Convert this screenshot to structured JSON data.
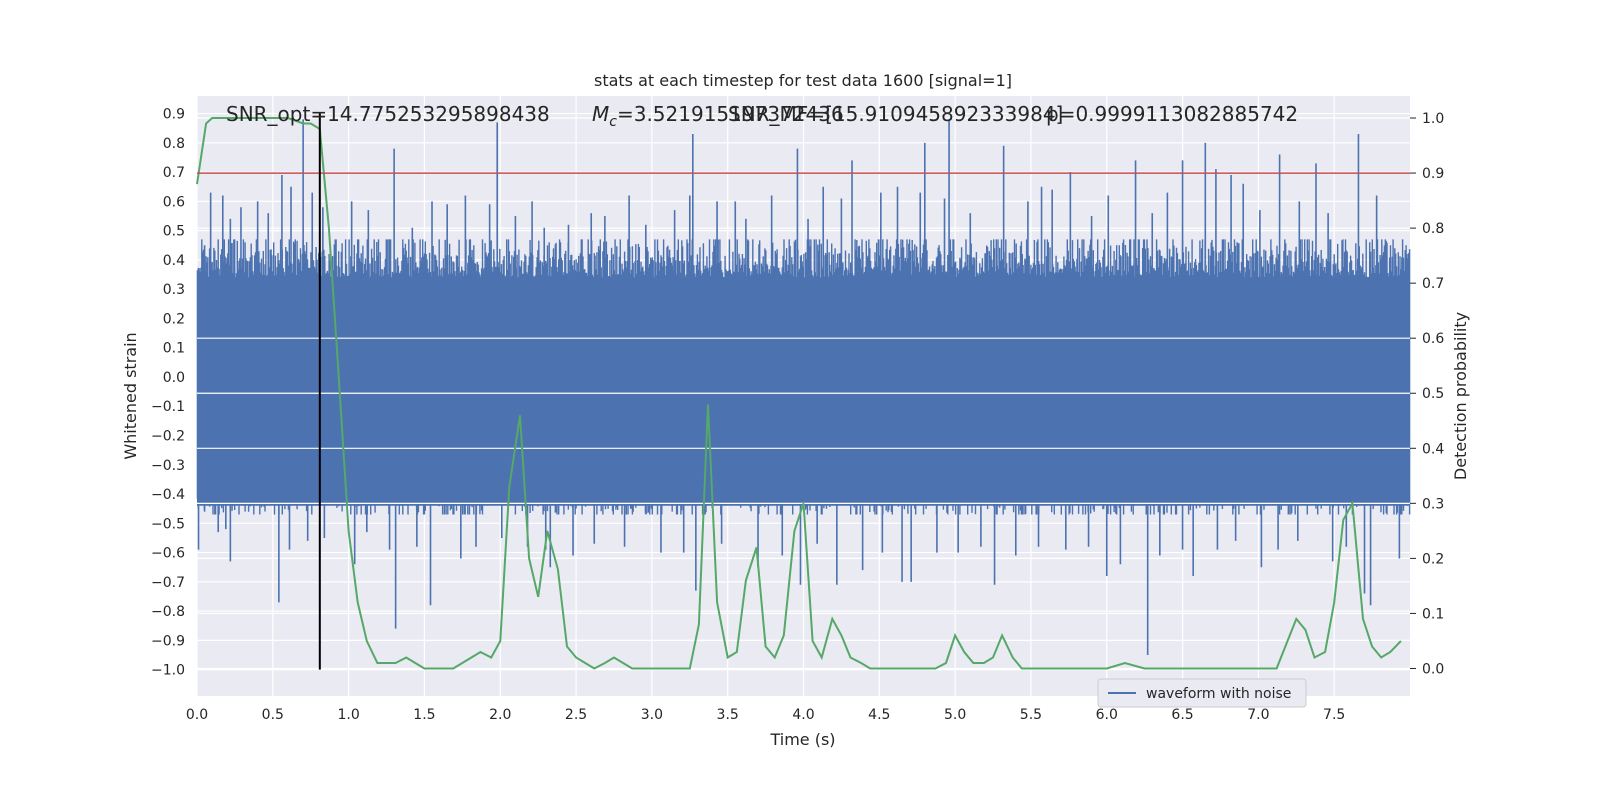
{
  "chart_data": {
    "type": "line",
    "title": "stats at each timestep for test data 1600 [signal=1]",
    "xlabel": "Time (s)",
    "ylabel_left": "Whitened strain",
    "ylabel_right": "Detection probability",
    "xlim": [
      0.0,
      8.0
    ],
    "ylim_left": [
      -1.09,
      0.96
    ],
    "ylim_right": [
      -0.05,
      1.04
    ],
    "x_ticks": [
      "0.0",
      "0.5",
      "1.0",
      "1.5",
      "2.0",
      "2.5",
      "3.0",
      "3.5",
      "4.0",
      "4.5",
      "5.0",
      "5.5",
      "6.0",
      "6.5",
      "7.0",
      "7.5"
    ],
    "y_ticks_left": [
      "0.9",
      "0.8",
      "0.7",
      "0.6",
      "0.5",
      "0.4",
      "0.3",
      "0.2",
      "0.1",
      "0.0",
      "−0.1",
      "−0.2",
      "−0.3",
      "−0.4",
      "−0.5",
      "−0.6",
      "−0.7",
      "−0.8",
      "−0.9",
      "−1.0"
    ],
    "y_ticks_right": [
      "1.0",
      "0.9",
      "0.8",
      "0.7",
      "0.6",
      "0.5",
      "0.4",
      "0.3",
      "0.2",
      "0.1",
      "0.0"
    ],
    "grid": true,
    "legend": {
      "location": "lower right",
      "entries": [
        "waveform with noise"
      ]
    },
    "annotations": {
      "snr_opt": "SNR_opt=14.775253295898438",
      "mc_symbol": "M",
      "mc_sub": "c",
      "mc_value": "=3.521915197372436",
      "snr_mf": "SNR_MF=[15.910945892333984]",
      "p_value": "p=0.9999113082885742"
    },
    "threshold_right": 0.9,
    "merger_time": 0.81,
    "series": [
      {
        "name": "waveform with noise",
        "color": "#4c72b0",
        "style": "dense noise, amplitude mostly within ±0.45 with spikes",
        "spikes": [
          [
            0.05,
            0.45
          ],
          [
            0.09,
            0.63
          ],
          [
            0.17,
            0.62
          ],
          [
            0.22,
            0.54
          ],
          [
            0.29,
            0.58
          ],
          [
            0.4,
            0.6
          ],
          [
            0.47,
            0.56
          ],
          [
            0.56,
            0.69
          ],
          [
            0.62,
            0.65
          ],
          [
            0.7,
            0.88
          ],
          [
            0.76,
            0.63
          ],
          [
            0.83,
            0.58
          ],
          [
            1.02,
            0.6
          ],
          [
            1.13,
            0.57
          ],
          [
            1.3,
            0.78
          ],
          [
            1.42,
            0.51
          ],
          [
            1.55,
            0.6
          ],
          [
            1.65,
            0.59
          ],
          [
            1.77,
            0.62
          ],
          [
            1.93,
            0.59
          ],
          [
            1.98,
            0.87
          ],
          [
            2.1,
            0.55
          ],
          [
            2.21,
            0.6
          ],
          [
            2.29,
            0.51
          ],
          [
            2.45,
            0.52
          ],
          [
            2.6,
            0.56
          ],
          [
            2.69,
            0.55
          ],
          [
            2.85,
            0.62
          ],
          [
            2.96,
            0.52
          ],
          [
            3.15,
            0.57
          ],
          [
            3.25,
            0.62
          ],
          [
            3.27,
            0.83
          ],
          [
            3.43,
            0.6
          ],
          [
            3.55,
            0.6
          ],
          [
            3.62,
            0.54
          ],
          [
            3.79,
            0.62
          ],
          [
            3.96,
            0.78
          ],
          [
            4.03,
            0.54
          ],
          [
            4.13,
            0.65
          ],
          [
            4.25,
            0.61
          ],
          [
            4.32,
            0.74
          ],
          [
            4.51,
            0.63
          ],
          [
            4.62,
            0.65
          ],
          [
            4.77,
            0.63
          ],
          [
            4.8,
            0.8
          ],
          [
            4.93,
            0.61
          ],
          [
            4.96,
            0.88
          ],
          [
            5.1,
            0.56
          ],
          [
            5.32,
            0.79
          ],
          [
            5.48,
            0.6
          ],
          [
            5.57,
            0.65
          ],
          [
            5.64,
            0.64
          ],
          [
            5.76,
            0.7
          ],
          [
            5.9,
            0.55
          ],
          [
            6.01,
            0.62
          ],
          [
            6.19,
            0.74
          ],
          [
            6.3,
            0.56
          ],
          [
            6.4,
            0.63
          ],
          [
            6.5,
            0.74
          ],
          [
            6.65,
            0.8
          ],
          [
            6.72,
            0.71
          ],
          [
            6.82,
            0.69
          ],
          [
            6.9,
            0.66
          ],
          [
            7.01,
            0.57
          ],
          [
            7.14,
            0.76
          ],
          [
            7.27,
            0.6
          ],
          [
            7.38,
            0.73
          ],
          [
            7.46,
            0.56
          ],
          [
            7.66,
            0.83
          ],
          [
            7.78,
            0.62
          ],
          [
            0.01,
            -0.59
          ],
          [
            0.05,
            -0.46
          ],
          [
            0.14,
            -0.53
          ],
          [
            0.19,
            -0.52
          ],
          [
            0.22,
            -0.63
          ],
          [
            0.54,
            -0.77
          ],
          [
            0.61,
            -0.59
          ],
          [
            0.73,
            -0.56
          ],
          [
            0.84,
            -0.55
          ],
          [
            1.04,
            -0.64
          ],
          [
            1.12,
            -0.53
          ],
          [
            1.27,
            -0.59
          ],
          [
            1.31,
            -0.86
          ],
          [
            1.45,
            -0.58
          ],
          [
            1.54,
            -0.78
          ],
          [
            1.74,
            -0.62
          ],
          [
            1.84,
            -0.58
          ],
          [
            2.01,
            -0.55
          ],
          [
            2.18,
            -0.58
          ],
          [
            2.3,
            -0.59
          ],
          [
            2.33,
            -0.65
          ],
          [
            2.48,
            -0.61
          ],
          [
            2.62,
            -0.57
          ],
          [
            2.82,
            -0.58
          ],
          [
            3.06,
            -0.6
          ],
          [
            3.21,
            -0.6
          ],
          [
            3.29,
            -0.73
          ],
          [
            3.46,
            -0.57
          ],
          [
            3.7,
            -0.65
          ],
          [
            3.86,
            -0.61
          ],
          [
            3.98,
            -0.71
          ],
          [
            4.09,
            -0.57
          ],
          [
            4.22,
            -0.71
          ],
          [
            4.39,
            -0.66
          ],
          [
            4.52,
            -0.6
          ],
          [
            4.65,
            -0.7
          ],
          [
            4.71,
            -0.7
          ],
          [
            4.88,
            -0.6
          ],
          [
            5.02,
            -0.6
          ],
          [
            5.17,
            -0.58
          ],
          [
            5.26,
            -0.71
          ],
          [
            5.4,
            -0.61
          ],
          [
            5.55,
            -0.58
          ],
          [
            5.73,
            -0.59
          ],
          [
            5.88,
            -0.58
          ],
          [
            6.0,
            -0.68
          ],
          [
            6.09,
            -0.64
          ],
          [
            6.27,
            -0.95
          ],
          [
            6.35,
            -0.61
          ],
          [
            6.5,
            -0.59
          ],
          [
            6.57,
            -0.68
          ],
          [
            6.73,
            -0.59
          ],
          [
            6.85,
            -0.56
          ],
          [
            7.02,
            -0.65
          ],
          [
            7.13,
            -0.59
          ],
          [
            7.26,
            -0.56
          ],
          [
            7.49,
            -0.63
          ],
          [
            7.58,
            -0.58
          ],
          [
            7.7,
            -0.74
          ],
          [
            7.74,
            -0.78
          ],
          [
            7.93,
            -0.62
          ]
        ]
      },
      {
        "name": "",
        "color": "#55a868",
        "axis": "right",
        "x": [
          0.0,
          0.06,
          0.1,
          0.2,
          0.3,
          0.4,
          0.5,
          0.6,
          0.7,
          0.75,
          0.81,
          0.87,
          0.93,
          1.0,
          1.06,
          1.12,
          1.19,
          1.25,
          1.31,
          1.38,
          1.44,
          1.5,
          1.56,
          1.62,
          1.69,
          1.75,
          1.81,
          1.87,
          1.94,
          2.0,
          2.06,
          2.13,
          2.19,
          2.25,
          2.31,
          2.38,
          2.44,
          2.5,
          2.56,
          2.62,
          2.69,
          2.75,
          2.81,
          2.87,
          3.0,
          3.12,
          3.25,
          3.31,
          3.37,
          3.43,
          3.5,
          3.56,
          3.62,
          3.69,
          3.75,
          3.81,
          3.87,
          3.94,
          4.0,
          4.06,
          4.12,
          4.19,
          4.25,
          4.31,
          4.38,
          4.44,
          4.5,
          4.62,
          4.75,
          4.87,
          4.94,
          5.0,
          5.06,
          5.12,
          5.19,
          5.25,
          5.31,
          5.38,
          5.44,
          5.5,
          5.62,
          5.75,
          5.87,
          6.0,
          6.12,
          6.25,
          6.31,
          6.37,
          6.5,
          6.62,
          6.75,
          6.87,
          7.0,
          7.12,
          7.25,
          7.31,
          7.37,
          7.44,
          7.5,
          7.56,
          7.62,
          7.69,
          7.75,
          7.81,
          7.87,
          7.94
        ],
        "y": [
          0.88,
          0.99,
          1.0,
          1.0,
          1.0,
          1.0,
          1.0,
          1.0,
          0.99,
          0.99,
          0.98,
          0.8,
          0.55,
          0.25,
          0.12,
          0.05,
          0.01,
          0.01,
          0.01,
          0.02,
          0.01,
          0.0,
          0.0,
          0.0,
          0.0,
          0.01,
          0.02,
          0.03,
          0.02,
          0.05,
          0.33,
          0.46,
          0.2,
          0.13,
          0.25,
          0.18,
          0.04,
          0.02,
          0.01,
          0.0,
          0.01,
          0.02,
          0.01,
          0.0,
          0.0,
          0.0,
          0.0,
          0.08,
          0.48,
          0.12,
          0.02,
          0.03,
          0.16,
          0.22,
          0.04,
          0.02,
          0.06,
          0.25,
          0.3,
          0.05,
          0.02,
          0.09,
          0.06,
          0.02,
          0.01,
          0.0,
          0.0,
          0.0,
          0.0,
          0.0,
          0.01,
          0.06,
          0.03,
          0.01,
          0.01,
          0.02,
          0.06,
          0.02,
          0.0,
          0.0,
          0.0,
          0.0,
          0.0,
          0.0,
          0.01,
          0.0,
          0.0,
          0.0,
          0.0,
          0.0,
          0.0,
          0.0,
          0.0,
          0.0,
          0.09,
          0.07,
          0.02,
          0.03,
          0.12,
          0.27,
          0.3,
          0.09,
          0.04,
          0.02,
          0.03,
          0.05
        ]
      }
    ]
  }
}
